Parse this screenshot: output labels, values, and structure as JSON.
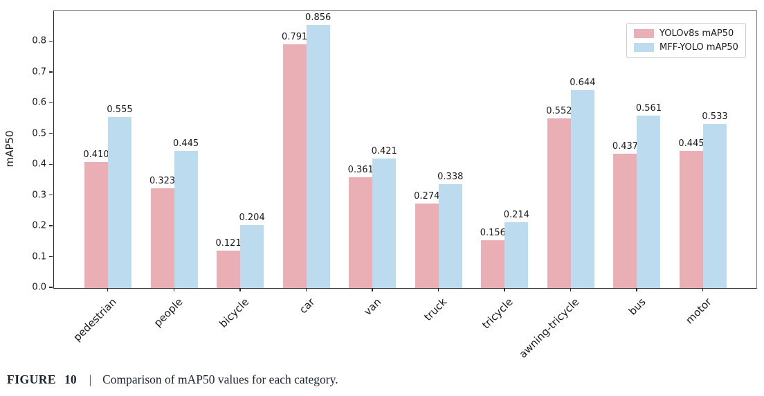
{
  "figure": {
    "caption_label": "FIGURE",
    "caption_number": "10",
    "caption_separator": "|",
    "caption_text": "Comparison of mAP50 values for each category."
  },
  "chart_data": {
    "type": "bar",
    "title": "",
    "xlabel": "",
    "ylabel": "mAP50",
    "ylim": [
      0,
      0.9
    ],
    "yticks": [
      0.0,
      0.1,
      0.2,
      0.3,
      0.4,
      0.5,
      0.6,
      0.7,
      0.8
    ],
    "grid": false,
    "legend_position": "upper right",
    "value_label_decimals": 3,
    "categories": [
      "pedestrian",
      "people",
      "bicycle",
      "car",
      "van",
      "truck",
      "tricycle",
      "awning-tricycle",
      "bus",
      "motor"
    ],
    "series": [
      {
        "name": "YOLOv8s mAP50",
        "color": "#eaafb4",
        "values": [
          0.41,
          0.323,
          0.121,
          0.791,
          0.361,
          0.274,
          0.156,
          0.552,
          0.437,
          0.445
        ]
      },
      {
        "name": "MFF-YOLO mAP50",
        "color": "#bddbee",
        "values": [
          0.555,
          0.445,
          0.204,
          0.856,
          0.421,
          0.338,
          0.214,
          0.644,
          0.561,
          0.533
        ]
      }
    ]
  },
  "style": {
    "tick_color": "#1a1a1a",
    "spine_color": "#2b2b2b",
    "legend_border_color": "#cccccc",
    "caption_color": "#1c2430"
  }
}
